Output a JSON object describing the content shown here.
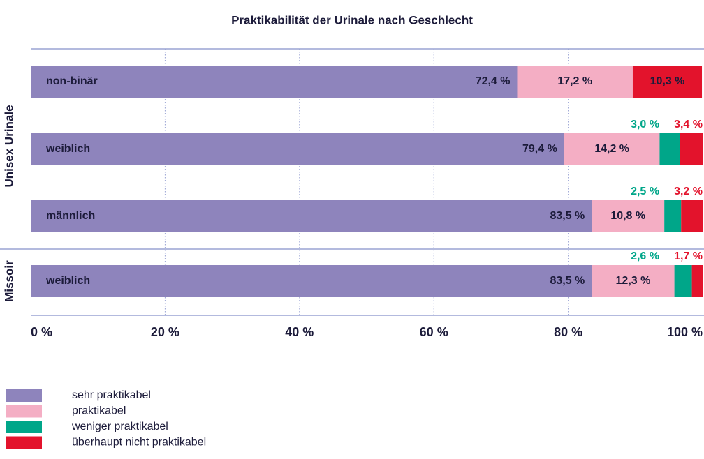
{
  "chart_data": {
    "type": "stacked-bar-horizontal",
    "title": "Praktikabilität der Urinale nach Geschlecht",
    "categories": [
      "non-binär",
      "weiblich",
      "männlich",
      "weiblich"
    ],
    "category_groups": [
      "Unisex Urinale",
      "Unisex Urinale",
      "Unisex Urinale",
      "Missoir"
    ],
    "series": [
      {
        "name": "sehr praktikabel",
        "color": "#8e84bc",
        "values": [
          72.4,
          79.4,
          83.5,
          83.5
        ],
        "value_labels": [
          "72,4 %",
          "79,4 %",
          "83,5 %",
          "83,5 %"
        ]
      },
      {
        "name": "praktikabel",
        "color": "#f4aec4",
        "values": [
          17.2,
          14.2,
          10.8,
          12.3
        ],
        "value_labels": [
          "17,2 %",
          "14,2 %",
          "10,8 %",
          "12,3 %"
        ]
      },
      {
        "name": "weniger praktikabel",
        "color": "#00a689",
        "values": [
          null,
          3.0,
          2.5,
          2.6
        ],
        "value_labels": [
          null,
          "3,0 %",
          "2,5 %",
          "2,6 %"
        ]
      },
      {
        "name": "überhaupt nicht praktikabel",
        "color": "#e3132c",
        "values": [
          10.3,
          3.4,
          3.2,
          1.7
        ],
        "value_labels": [
          "10,3 %",
          "3,4 %",
          "3,2 %",
          "1,7 %"
        ]
      }
    ],
    "xlim": [
      0,
      100
    ],
    "xticks": [
      {
        "value": 0,
        "label": "0 %"
      },
      {
        "value": 20,
        "label": "20 %"
      },
      {
        "value": 40,
        "label": "40 %"
      },
      {
        "value": 60,
        "label": "60 %"
      },
      {
        "value": 80,
        "label": "80 %"
      },
      {
        "value": 100,
        "label": "100 %"
      }
    ],
    "grid": true
  }
}
